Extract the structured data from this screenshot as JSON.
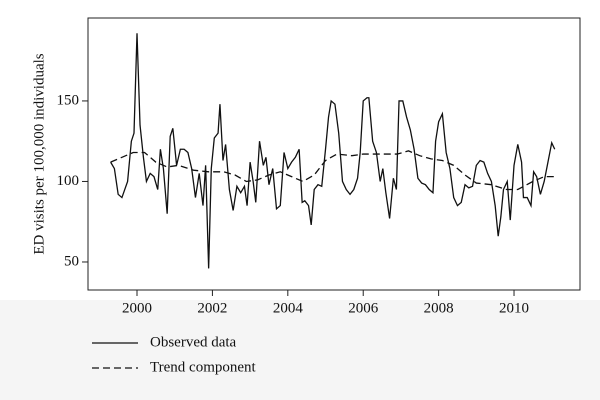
{
  "chart_data": {
    "type": "line",
    "y_label": "ED visits per 100,000 individuals",
    "xlim": [
      1998.7,
      2011.75
    ],
    "xticks": [
      2000,
      2002,
      2004,
      2006,
      2008,
      2010
    ],
    "ylim": [
      32.6,
      201.5
    ],
    "yticks": [
      50,
      100,
      150
    ],
    "legend": "bottom-left",
    "series": [
      {
        "name": "Observed data",
        "color": "#111111",
        "line_style": "solid",
        "x": [
          1999.3,
          1999.4,
          1999.5,
          1999.6,
          1999.75,
          1999.85,
          1999.92,
          2000.0,
          2000.08,
          2000.17,
          2000.25,
          2000.35,
          2000.45,
          2000.55,
          2000.62,
          2000.7,
          2000.8,
          2000.88,
          2000.95,
          2001.05,
          2001.15,
          2001.25,
          2001.35,
          2001.45,
          2001.55,
          2001.65,
          2001.75,
          2001.82,
          2001.9,
          2001.97,
          2002.05,
          2002.15,
          2002.2,
          2002.28,
          2002.35,
          2002.45,
          2002.55,
          2002.65,
          2002.75,
          2002.85,
          2002.92,
          2003.0,
          2003.08,
          2003.15,
          2003.25,
          2003.35,
          2003.42,
          2003.5,
          2003.6,
          2003.7,
          2003.8,
          2003.9,
          2004.0,
          2004.1,
          2004.2,
          2004.3,
          2004.38,
          2004.45,
          2004.55,
          2004.62,
          2004.7,
          2004.8,
          2004.9,
          2005.0,
          2005.08,
          2005.15,
          2005.25,
          2005.35,
          2005.45,
          2005.55,
          2005.65,
          2005.75,
          2005.85,
          2005.92,
          2006.0,
          2006.1,
          2006.15,
          2006.25,
          2006.35,
          2006.45,
          2006.52,
          2006.6,
          2006.7,
          2006.8,
          2006.88,
          2006.95,
          2007.05,
          2007.15,
          2007.25,
          2007.35,
          2007.45,
          2007.55,
          2007.65,
          2007.75,
          2007.85,
          2007.92,
          2008.0,
          2008.1,
          2008.2,
          2008.3,
          2008.4,
          2008.5,
          2008.6,
          2008.7,
          2008.8,
          2008.9,
          2009.0,
          2009.1,
          2009.2,
          2009.3,
          2009.4,
          2009.5,
          2009.58,
          2009.65,
          2009.72,
          2009.82,
          2009.9,
          2010.0,
          2010.1,
          2010.2,
          2010.25,
          2010.35,
          2010.45,
          2010.52,
          2010.6,
          2010.7,
          2010.8,
          2010.9,
          2011.0,
          2011.08
        ],
        "values": [
          112,
          108,
          92,
          90,
          100,
          125,
          130,
          192,
          135,
          115,
          100,
          105,
          103,
          95,
          120,
          108,
          80,
          128,
          133,
          110,
          120,
          120,
          118,
          108,
          90,
          105,
          85,
          110,
          46,
          108,
          127,
          130,
          148,
          113,
          123,
          95,
          82,
          97,
          93,
          97,
          85,
          112,
          100,
          87,
          125,
          110,
          115,
          98,
          108,
          83,
          85,
          118,
          108,
          112,
          115,
          120,
          87,
          88,
          85,
          73,
          95,
          98,
          97,
          120,
          140,
          150,
          148,
          130,
          100,
          95,
          92,
          95,
          102,
          118,
          150,
          152,
          152,
          125,
          118,
          100,
          108,
          93,
          77,
          102,
          95,
          150,
          150,
          140,
          132,
          120,
          102,
          99,
          98,
          95,
          93,
          125,
          137,
          142,
          118,
          108,
          90,
          85,
          87,
          98,
          96,
          97,
          110,
          113,
          112,
          105,
          100,
          85,
          66,
          78,
          95,
          100,
          76,
          110,
          123,
          112,
          90,
          90,
          85,
          106,
          103,
          92,
          100,
          112,
          124,
          120
        ]
      },
      {
        "name": "Trend component",
        "color": "#111111",
        "line_style": "dashed",
        "x": [
          1999.3,
          1999.6,
          1999.9,
          2000.2,
          2000.5,
          2000.8,
          2001.1,
          2001.5,
          2001.9,
          2002.3,
          2002.6,
          2002.9,
          2003.2,
          2003.5,
          2003.8,
          2004.1,
          2004.4,
          2004.7,
          2005.0,
          2005.3,
          2005.7,
          2006.0,
          2006.5,
          2006.9,
          2007.2,
          2007.5,
          2007.8,
          2008.1,
          2008.4,
          2008.7,
          2009.0,
          2009.4,
          2009.8,
          2010.1,
          2010.5,
          2010.8,
          2011.08
        ],
        "values": [
          112,
          115,
          118,
          118,
          112,
          109,
          110,
          107,
          106,
          106,
          104,
          100,
          101,
          104,
          106,
          103,
          100,
          104,
          113,
          117,
          116,
          117,
          117,
          117,
          119,
          116,
          114,
          113,
          110,
          104,
          99,
          98,
          95,
          95,
          100,
          103,
          103
        ]
      }
    ]
  }
}
